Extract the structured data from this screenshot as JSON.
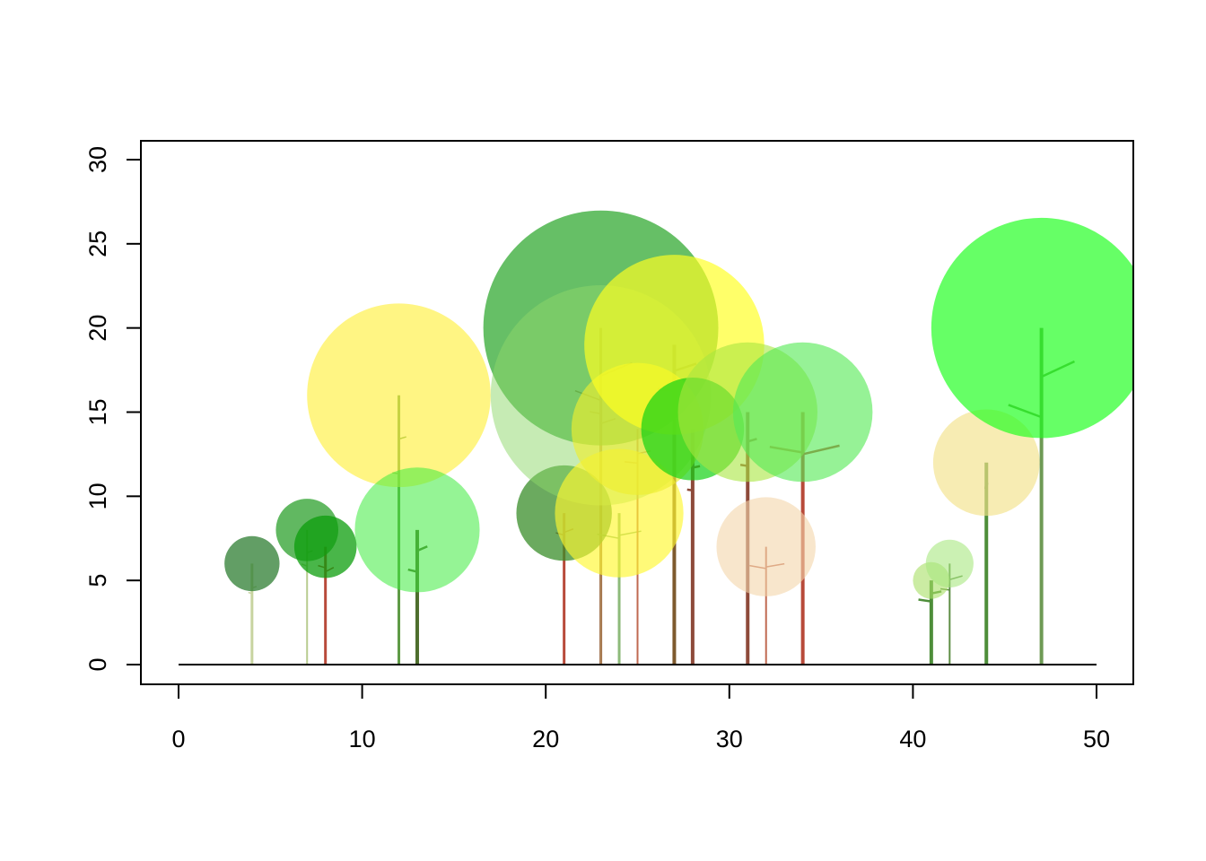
{
  "chart_data": {
    "type": "scatter",
    "title": "",
    "xlabel": "",
    "ylabel": "",
    "xlim": [
      0,
      50
    ],
    "ylim": [
      0,
      30
    ],
    "x_ticks": [
      0,
      10,
      20,
      30,
      40,
      50
    ],
    "y_ticks": [
      0,
      5,
      10,
      15,
      20,
      25,
      30
    ],
    "x_tick_labels": [
      "0",
      "10",
      "20",
      "30",
      "40",
      "50"
    ],
    "y_tick_labels": [
      "0",
      "5",
      "10",
      "15",
      "20",
      "25",
      "30"
    ],
    "grid": false,
    "legend": "none",
    "ground_line": {
      "x": [
        0,
        50
      ],
      "y": 0
    },
    "trees": [
      {
        "x": 4,
        "height": 6,
        "crown_radius": 1.5,
        "crown_color": "#2E7D32",
        "crown_alpha": 0.75,
        "trunk_color": "#C8D4A0",
        "trunk_width": 3,
        "branches": [
          [
            0.72,
            -0.2,
            0.28
          ],
          [
            0.78,
            0.25,
            0.3
          ]
        ]
      },
      {
        "x": 7,
        "height": 8,
        "crown_radius": 1.7,
        "crown_color": "#1E9A1E",
        "crown_alpha": 0.7,
        "trunk_color": "#B8CC90",
        "trunk_width": 2,
        "branches": [
          [
            0.75,
            -0.3,
            0.4
          ],
          [
            0.85,
            0.3,
            0.35
          ]
        ]
      },
      {
        "x": 8,
        "height": 7,
        "crown_radius": 1.7,
        "crown_color": "#0C9E0C",
        "crown_alpha": 0.75,
        "trunk_color": "#B84A3A",
        "trunk_width": 3,
        "branches": [
          [
            0.85,
            -0.4,
            0.3
          ],
          [
            0.82,
            0.45,
            0.55
          ]
        ]
      },
      {
        "x": 12,
        "height": 16,
        "crown_radius": 5.0,
        "crown_color": "#FFEF40",
        "crown_alpha": 0.65,
        "trunk_color": "#5E9A45",
        "trunk_width": 3,
        "branches": [
          [
            0.72,
            -0.35,
            0.12
          ],
          [
            0.85,
            0.4,
            0.3
          ]
        ]
      },
      {
        "x": 13,
        "height": 8,
        "crown_radius": 3.4,
        "crown_color": "#3EEB3E",
        "crown_alpha": 0.55,
        "trunk_color": "#4E6E2E",
        "trunk_width": 4,
        "branches": [
          [
            0.72,
            -0.5,
            0.25
          ],
          [
            0.88,
            0.55,
            0.45
          ]
        ]
      },
      {
        "x": 21,
        "height": 9,
        "crown_radius": 2.6,
        "crown_color": "#3A8E2A",
        "crown_alpha": 0.75,
        "trunk_color": "#B84A3A",
        "trunk_width": 3,
        "branches": [
          [
            0.88,
            -0.45,
            0.28
          ],
          [
            0.9,
            0.5,
            0.4
          ]
        ]
      },
      {
        "x": 23,
        "height": 20,
        "crown_radius": 6.4,
        "crown_color": "#1DA11D",
        "crown_alpha": 0.68,
        "trunk_color": "#8E5538",
        "trunk_width": 3,
        "branches": [
          [
            0.82,
            -1.4,
            0.4
          ],
          [
            0.9,
            1.7,
            0.45
          ]
        ]
      },
      {
        "x": 23,
        "height": 16,
        "crown_radius": 6.0,
        "crown_color": "#8DD86A",
        "crown_alpha": 0.5,
        "trunk_color": "#B0885A",
        "trunk_width": 2,
        "branches": [
          [
            0.95,
            -0.6,
            0.2
          ],
          [
            0.92,
            0.8,
            0.35
          ]
        ]
      },
      {
        "x": 24,
        "height": 9,
        "crown_radius": 3.5,
        "crown_color": "#FFF830",
        "crown_alpha": 0.65,
        "trunk_color": "#8DBA7A",
        "trunk_width": 3,
        "branches": [
          [
            0.9,
            -1.2,
            0.2
          ],
          [
            0.92,
            1.2,
            0.2
          ]
        ]
      },
      {
        "x": 25,
        "height": 14,
        "crown_radius": 3.6,
        "crown_color": "#EEEE30",
        "crown_alpha": 0.65,
        "trunk_color": "#C06A52",
        "trunk_width": 2,
        "branches": [
          [
            0.88,
            -0.7,
            0.1
          ],
          [
            0.92,
            0.7,
            0.22
          ]
        ]
      },
      {
        "x": 27,
        "height": 19,
        "crown_radius": 4.9,
        "crown_color": "#FFFF22",
        "crown_alpha": 0.68,
        "trunk_color": "#7E5A2E",
        "trunk_width": 4,
        "branches": [
          [
            0.88,
            -0.9,
            0.12
          ],
          [
            0.95,
            1.2,
            0.35
          ]
        ]
      },
      {
        "x": 28,
        "height": 14,
        "crown_radius": 2.8,
        "crown_color": "#14D214",
        "crown_alpha": 0.7,
        "trunk_color": "#8E4A3A",
        "trunk_width": 4,
        "branches": [
          [
            0.75,
            -0.3,
            0.12
          ],
          [
            0.85,
            0.4,
            0.2
          ]
        ]
      },
      {
        "x": 31,
        "height": 15,
        "crown_radius": 3.8,
        "crown_color": "#A8E640",
        "crown_alpha": 0.6,
        "trunk_color": "#8E4A3A",
        "trunk_width": 4,
        "branches": [
          [
            0.8,
            -0.4,
            0.15
          ],
          [
            0.9,
            0.5,
            0.3
          ]
        ]
      },
      {
        "x": 32,
        "height": 7,
        "crown_radius": 2.7,
        "crown_color": "#F3D5AA",
        "crown_alpha": 0.6,
        "trunk_color": "#C06A52",
        "trunk_width": 2,
        "branches": [
          [
            0.88,
            -0.9,
            0.18
          ],
          [
            0.9,
            1.0,
            0.18
          ]
        ]
      },
      {
        "x": 34,
        "height": 15,
        "crown_radius": 3.8,
        "crown_color": "#56EA56",
        "crown_alpha": 0.62,
        "trunk_color": "#B84A3A",
        "trunk_width": 4,
        "branches": [
          [
            0.9,
            -1.8,
            0.18
          ],
          [
            0.9,
            2.0,
            0.25
          ]
        ]
      },
      {
        "x": 41,
        "height": 5,
        "crown_radius": 1.0,
        "crown_color": "#A8E066",
        "crown_alpha": 0.6,
        "trunk_color": "#4E8E3A",
        "trunk_width": 4,
        "branches": [
          [
            0.82,
            -0.7,
            0.15
          ],
          [
            0.9,
            0.55,
            0.2
          ]
        ]
      },
      {
        "x": 42,
        "height": 6,
        "crown_radius": 1.3,
        "crown_color": "#A8E880",
        "crown_alpha": 0.6,
        "trunk_color": "#5E8E45",
        "trunk_width": 2,
        "branches": [
          [
            0.78,
            -0.5,
            0.12
          ],
          [
            0.9,
            0.7,
            0.3
          ]
        ]
      },
      {
        "x": 44,
        "height": 12,
        "crown_radius": 2.9,
        "crown_color": "#F3E28A",
        "crown_alpha": 0.65,
        "trunk_color": "#4E8E3A",
        "trunk_width": 4,
        "branches": [
          [
            0.88,
            -0.1,
            0.0
          ],
          [
            0.9,
            0.1,
            0.0
          ]
        ]
      },
      {
        "x": 47,
        "height": 20,
        "crown_radius": 6.0,
        "crown_color": "#1EFF1E",
        "crown_alpha": 0.68,
        "trunk_color": "#6E9A55",
        "trunk_width": 4,
        "branches": [
          [
            0.78,
            -1.8,
            0.4
          ],
          [
            0.9,
            1.8,
            0.5
          ]
        ]
      }
    ]
  }
}
